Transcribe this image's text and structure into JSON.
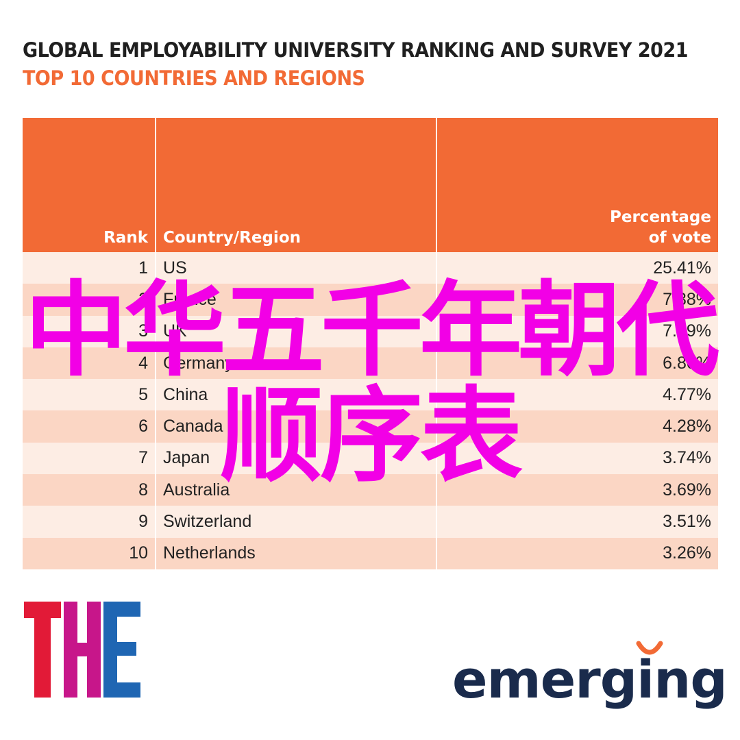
{
  "colors": {
    "title": "#1f1f1f",
    "subtitle": "#f26a35",
    "header_bg": "#f26a35",
    "row_odd": "#fdede4",
    "row_even": "#fbd6c4",
    "overlay": "#f200e6",
    "the_red": "#e21a37",
    "the_pink": "#c7168a",
    "the_blue": "#1f66b3",
    "emerging_text": "#1a2b4c",
    "emerging_accent": "#f26a35"
  },
  "chart_data": {
    "type": "table",
    "title": "GLOBAL EMPLOYABILITY UNIVERSITY RANKING AND SURVEY 2021",
    "subtitle": "TOP 10 COUNTRIES AND REGIONS",
    "columns": [
      "Rank",
      "Country/Region",
      "Percentage of vote"
    ],
    "rows": [
      {
        "rank": "1",
        "country": "US",
        "pct": "25.41%"
      },
      {
        "rank": "2",
        "country": "France",
        "pct": "7.38%"
      },
      {
        "rank": "3",
        "country": "UK",
        "pct": "7.29%"
      },
      {
        "rank": "4",
        "country": "Germany",
        "pct": "6.80%"
      },
      {
        "rank": "5",
        "country": "China",
        "pct": "4.77%"
      },
      {
        "rank": "6",
        "country": "Canada",
        "pct": "4.28%"
      },
      {
        "rank": "7",
        "country": "Japan",
        "pct": "3.74%"
      },
      {
        "rank": "8",
        "country": "Australia",
        "pct": "3.69%"
      },
      {
        "rank": "9",
        "country": "Switzerland",
        "pct": "3.51%"
      },
      {
        "rank": "10",
        "country": "Netherlands",
        "pct": "3.26%"
      }
    ]
  },
  "overlay": {
    "line1": "中华五千年朝代",
    "line2": "顺序表"
  },
  "logos": {
    "the_letters": [
      "T",
      "H",
      "E"
    ],
    "emerging": "emerging"
  }
}
